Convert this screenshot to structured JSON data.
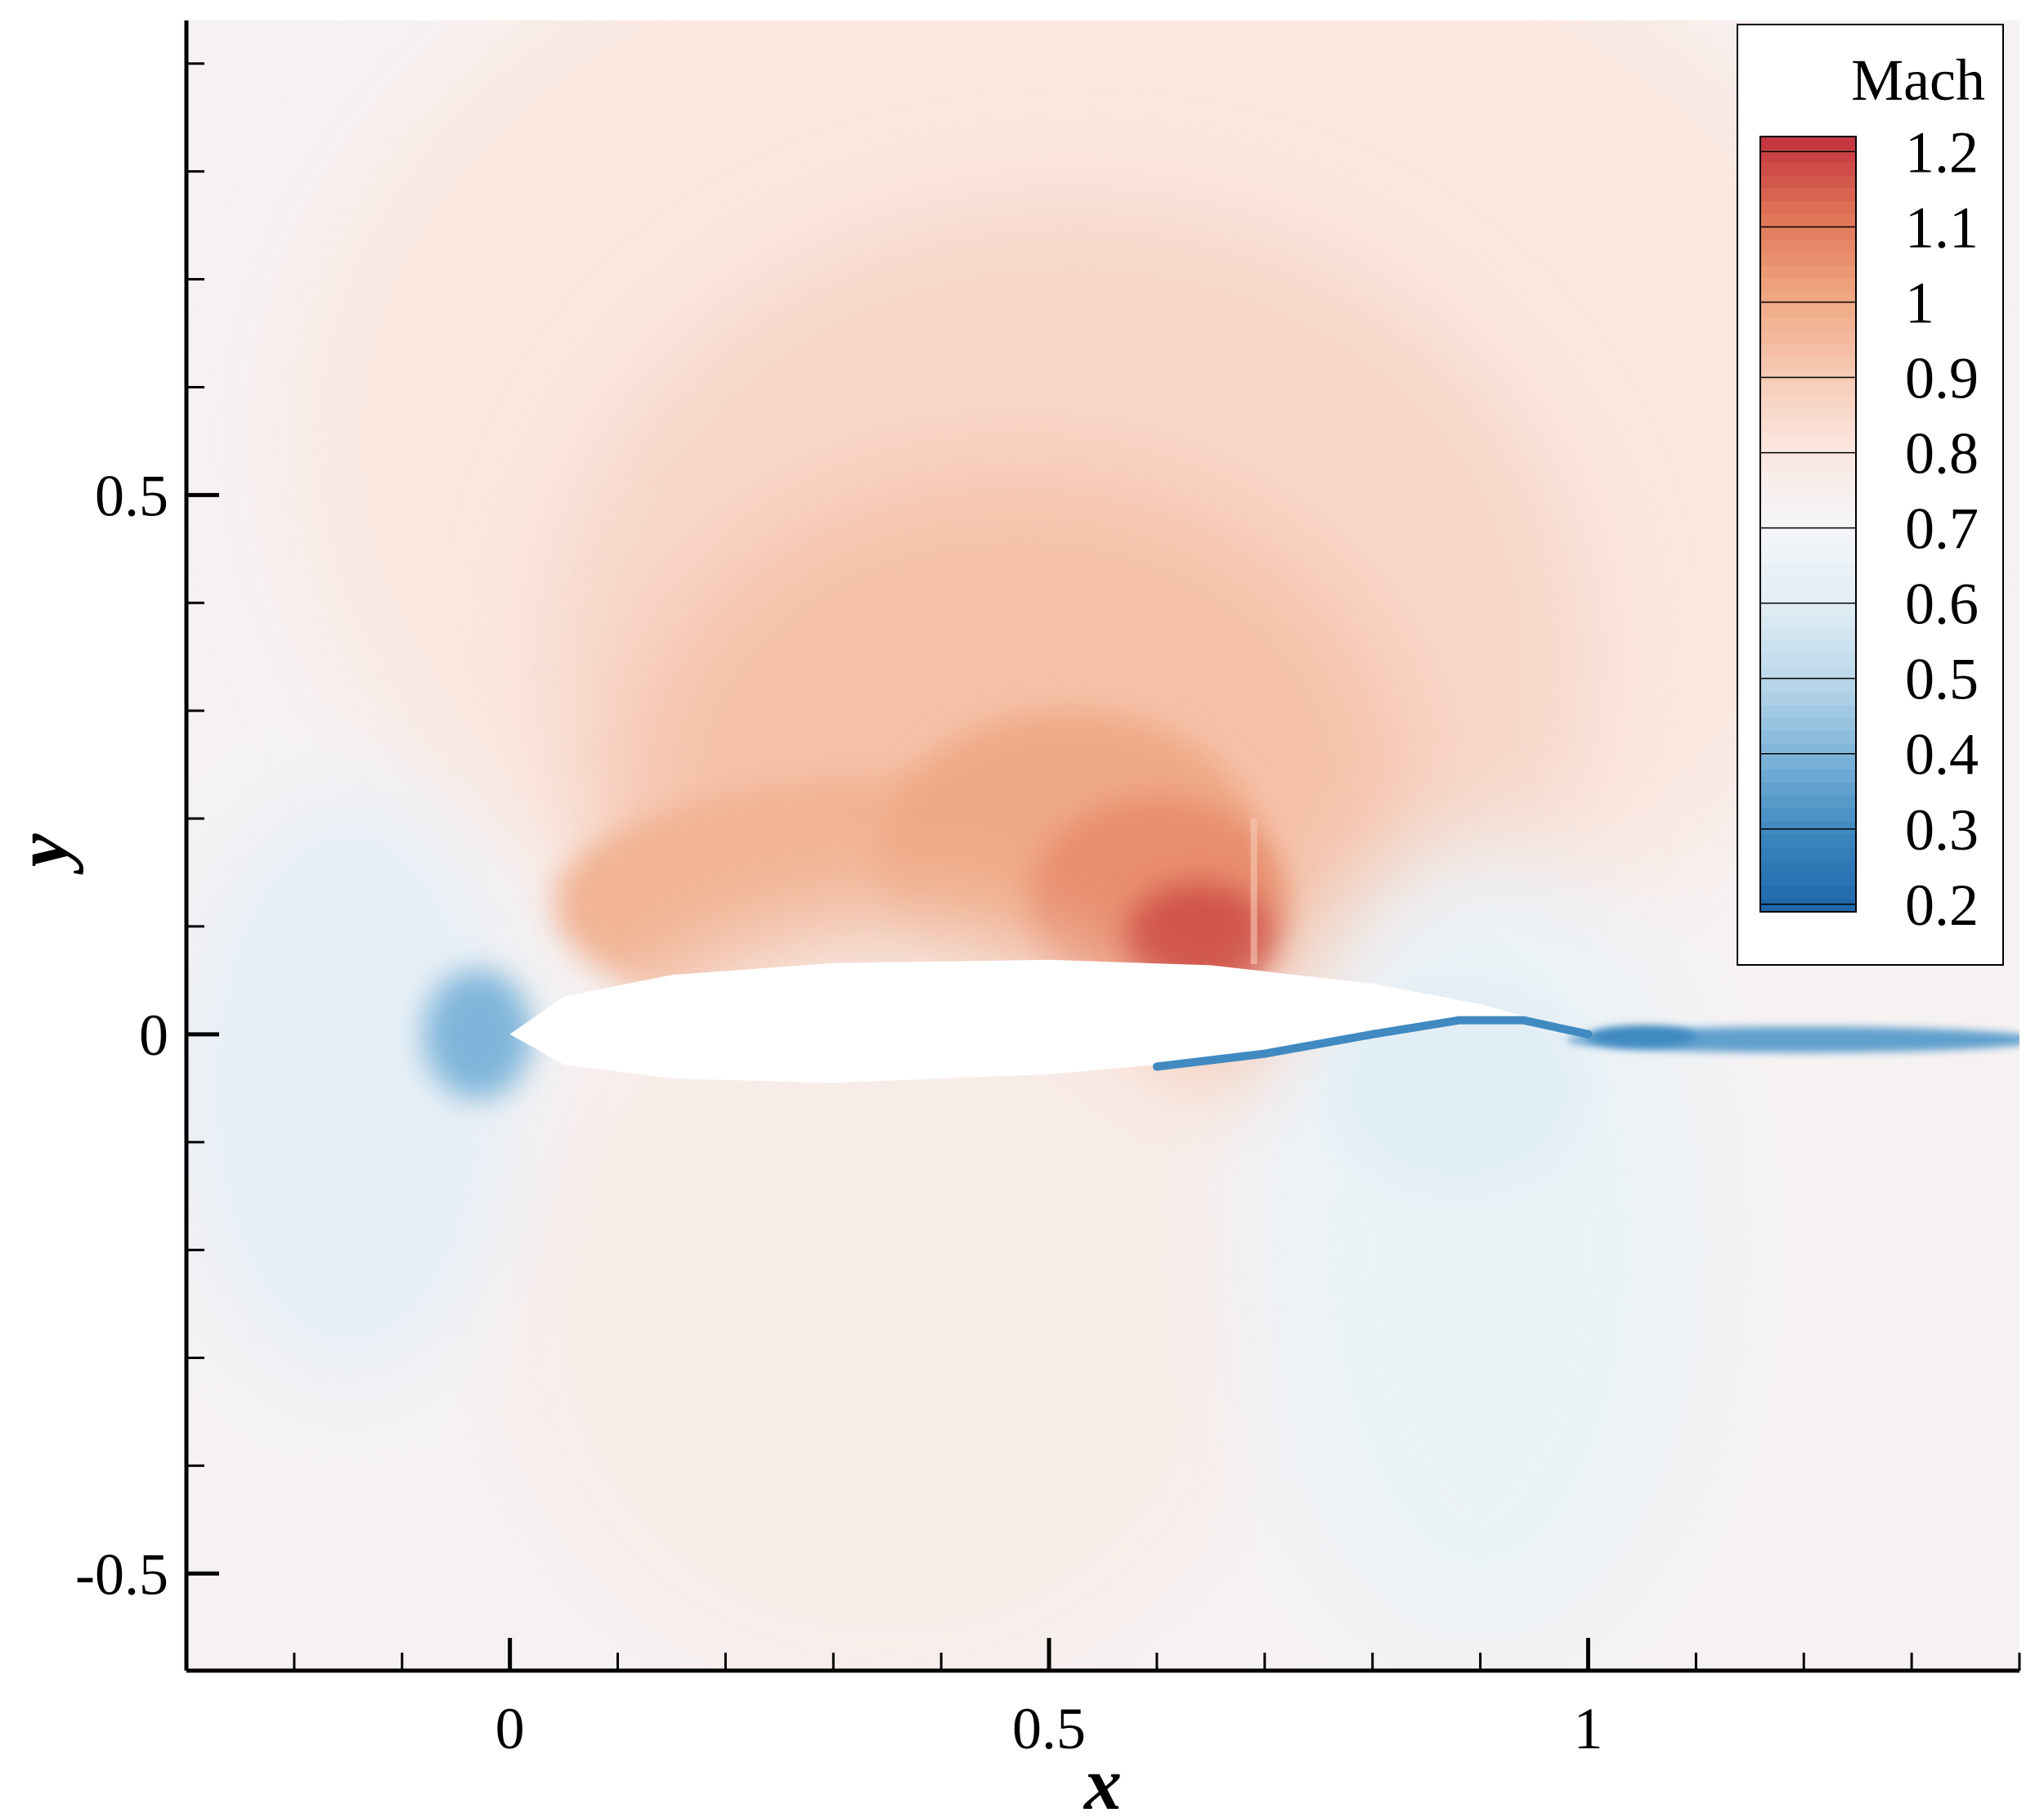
{
  "chart_data": {
    "type": "heatmap",
    "xlabel": "x",
    "ylabel": "y",
    "xlim": [
      -0.3,
      1.4
    ],
    "ylim": [
      -0.59,
      0.94
    ],
    "x_major_ticks": [
      0,
      0.5,
      1
    ],
    "x_tick_labels": [
      "0",
      "0.5",
      "1"
    ],
    "y_major_ticks": [
      -0.5,
      0,
      0.5
    ],
    "y_tick_labels": [
      "-0.5",
      "0",
      "0.5"
    ],
    "x_minor_step": 0.1,
    "y_minor_step": 0.1,
    "grid": false,
    "colorbar": {
      "title": "Mach",
      "min": 0.19,
      "max": 1.22,
      "tick_values": [
        1.2,
        1.1,
        1,
        0.9,
        0.8,
        0.7,
        0.6,
        0.5,
        0.4,
        0.3,
        0.2
      ],
      "tick_labels": [
        "1.2",
        "1.1",
        "1",
        "0.9",
        "0.8",
        "0.7",
        "0.6",
        "0.5",
        "0.4",
        "0.3",
        "0.2"
      ],
      "placement": "top-right",
      "colors": [
        "#1f64a8",
        "#3c87bf",
        "#7db4d9",
        "#bcd8ea",
        "#e3eef5",
        "#f4f6f8",
        "#fbe6de",
        "#f6c7b1",
        "#eea47f",
        "#e07356",
        "#c2323e"
      ]
    },
    "freestream_mach": 0.73,
    "airfoil": {
      "chord": [
        0,
        1
      ],
      "upper_surface": [
        [
          0,
          0
        ],
        [
          0.05,
          0.035
        ],
        [
          0.15,
          0.055
        ],
        [
          0.3,
          0.066
        ],
        [
          0.5,
          0.069
        ],
        [
          0.65,
          0.064
        ],
        [
          0.8,
          0.047
        ],
        [
          0.9,
          0.028
        ],
        [
          1.0,
          0
        ]
      ],
      "lower_surface": [
        [
          0,
          0
        ],
        [
          0.05,
          -0.028
        ],
        [
          0.15,
          -0.041
        ],
        [
          0.3,
          -0.045
        ],
        [
          0.5,
          -0.037
        ],
        [
          0.65,
          -0.024
        ],
        [
          0.75,
          -0.009
        ],
        [
          0.85,
          0.011
        ],
        [
          0.9,
          0.016
        ],
        [
          0.95,
          0.012
        ],
        [
          1.0,
          0
        ]
      ]
    },
    "features": {
      "supersonic_pocket": {
        "x_range": [
          0.02,
          0.69
        ],
        "y_max": 0.2,
        "peak_mach": 1.2,
        "shock_x": 0.69
      },
      "stagnation_point": {
        "x": 0,
        "y": 0,
        "mach": 0.2
      },
      "wake": {
        "x_start": 1.0,
        "x_end": 1.4,
        "y": -0.005,
        "mach": 0.35
      },
      "lower_trailing_region": {
        "x": 0.88,
        "y": 0.005,
        "mach": 0.3
      }
    }
  }
}
